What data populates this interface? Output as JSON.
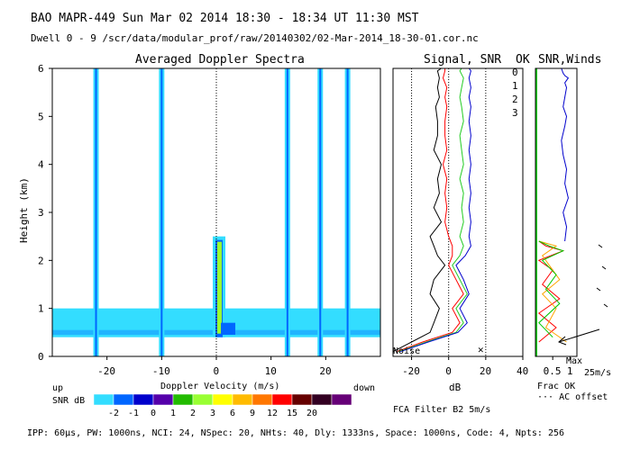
{
  "header": {
    "title_line": "BAO  MAPR-449  Sun Mar 02 2014 18:30 - 18:34 UT 11:30 MST",
    "dwell_line": "Dwell  0 -  9   /scr/data/modular_prof/raw/20140302/02-Mar-2014_18-30-01.cor.nc"
  },
  "panels": {
    "spectra_title": "Averaged Doppler Spectra",
    "signal_title": "Signal, SNR",
    "ok_title": "OK",
    "winds_title": "SNR,Winds"
  },
  "legend_ok": {
    "labels": [
      "0",
      "1",
      "2",
      "3"
    ],
    "colors": [
      "#ff0000",
      "#ffa500",
      "#00c800",
      "#0000c8"
    ]
  },
  "annotations": {
    "up": "up",
    "down": "down",
    "snr_db": "SNR dB",
    "noise": "Noise",
    "db_label": "dB",
    "frac_ok": "Frac OK",
    "ac_offset": "··· AC offset",
    "max": "Max",
    "max_speed": "25m/s",
    "filter": "FCA Filter B2  5m/s"
  },
  "colorbar": {
    "labels": [
      "-2",
      "-1",
      "0",
      "1",
      "2",
      "3",
      "6",
      "9",
      "12",
      "15",
      "20"
    ],
    "colors": [
      "#33ddff",
      "#0066ff",
      "#0000cc",
      "#5500aa",
      "#22bb00",
      "#99ff33",
      "#ffff00",
      "#ffbb00",
      "#ff7700",
      "#ff0000",
      "#660000",
      "#330022",
      "#660077"
    ]
  },
  "footer": {
    "params": "IPP:  60µs,  PW: 1000ns,  NCI:  24,  NSpec: 20, NHts: 40,  Dly: 1333ns,  Space: 1000ns,  Code: 4,  Npts: 256"
  },
  "chart_data": [
    {
      "type": "heatmap",
      "title": "Averaged Doppler Spectra",
      "xlabel": "Doppler Velocity (m/s)",
      "ylabel": "Height (km)",
      "xlim": [
        -30,
        30
      ],
      "ylim": [
        0,
        6
      ],
      "xticks": [
        -20,
        -10,
        0,
        10,
        20
      ],
      "yticks": [
        0,
        1,
        2,
        3,
        4,
        5,
        6
      ],
      "vertical_bands_m_s": [
        -22,
        -10,
        13,
        19,
        24
      ],
      "low_layer_km": [
        0.4,
        1.0
      ],
      "center_echo_top_km": 2.5
    },
    {
      "type": "line",
      "title": "Signal, SNR",
      "xlabel": "dB",
      "xlim": [
        -30,
        40
      ],
      "ylim": [
        0,
        6
      ],
      "xticks": [
        -20,
        0,
        20,
        40
      ],
      "series": [
        {
          "name": "signal",
          "color": "#000000",
          "x": [
            -30,
            -20,
            -10,
            -8,
            -5,
            -10,
            -8,
            -2,
            -6,
            -8,
            -10,
            -4,
            -8,
            -5,
            -6,
            -4,
            -8,
            -6,
            -6,
            -7,
            -5,
            -6,
            -5,
            -6,
            -4
          ],
          "y": [
            0.1,
            0.3,
            0.5,
            0.7,
            1.0,
            1.3,
            1.6,
            1.9,
            2.1,
            2.3,
            2.5,
            2.8,
            3.1,
            3.4,
            3.7,
            4.0,
            4.3,
            4.6,
            4.9,
            5.2,
            5.4,
            5.6,
            5.8,
            5.95,
            6.0
          ]
        },
        {
          "name": "snr-red",
          "color": "#ff0000",
          "x": [
            -28,
            -14,
            2,
            6,
            2,
            8,
            4,
            0,
            2,
            2,
            0,
            -2,
            -1,
            -2,
            -1,
            -3,
            -1,
            -2,
            -2,
            -1,
            -2,
            -1,
            -3,
            -2,
            -2
          ],
          "y": [
            0.1,
            0.3,
            0.5,
            0.7,
            1.0,
            1.3,
            1.6,
            1.9,
            2.1,
            2.3,
            2.5,
            2.8,
            3.1,
            3.4,
            3.7,
            4.0,
            4.3,
            4.6,
            4.9,
            5.2,
            5.4,
            5.6,
            5.8,
            5.95,
            6.0
          ]
        },
        {
          "name": "snr-green",
          "color": "#22cc22",
          "x": [
            -27,
            -12,
            4,
            8,
            4,
            10,
            6,
            2,
            6,
            8,
            6,
            8,
            7,
            8,
            6,
            8,
            7,
            6,
            8,
            7,
            6,
            7,
            8,
            6,
            7
          ],
          "y": [
            0.1,
            0.3,
            0.5,
            0.7,
            1.0,
            1.3,
            1.6,
            1.9,
            2.1,
            2.3,
            2.5,
            2.8,
            3.1,
            3.4,
            3.7,
            4.0,
            4.3,
            4.6,
            4.9,
            5.2,
            5.4,
            5.6,
            5.8,
            5.95,
            6.0
          ]
        },
        {
          "name": "snr-blue",
          "color": "#0000cc",
          "x": [
            -26,
            -11,
            5,
            10,
            6,
            11,
            8,
            4,
            9,
            12,
            11,
            12,
            11,
            12,
            11,
            12,
            11,
            12,
            11,
            12,
            11,
            12,
            11,
            12,
            11
          ],
          "y": [
            0.1,
            0.3,
            0.5,
            0.7,
            1.0,
            1.3,
            1.6,
            1.9,
            2.1,
            2.3,
            2.5,
            2.8,
            3.1,
            3.4,
            3.7,
            4.0,
            4.3,
            4.6,
            4.9,
            5.2,
            5.4,
            5.6,
            5.8,
            5.95,
            6.0
          ]
        }
      ]
    },
    {
      "type": "line",
      "title": "OK SNR,Winds",
      "xlabel": "Frac OK",
      "xlim": [
        0,
        1.2
      ],
      "ylim": [
        0,
        6
      ],
      "xticks": [
        0.5,
        1
      ],
      "series": [
        {
          "name": "wind-speed",
          "color": "#0000cc",
          "x": [
            0.85,
            0.9,
            0.8,
            0.95,
            0.85,
            0.9,
            0.8,
            0.75,
            0.85,
            0.9,
            0.8,
            0.85,
            0.9,
            0.85,
            0.95,
            0.85,
            0.8,
            0.75
          ],
          "y": [
            2.4,
            2.7,
            3.0,
            3.3,
            3.6,
            3.9,
            4.2,
            4.5,
            4.8,
            5.0,
            5.2,
            5.4,
            5.6,
            5.7,
            5.8,
            5.85,
            5.9,
            6.0
          ]
        },
        {
          "name": "frac-ok-0",
          "color": "#ff0000",
          "x": [
            0.1,
            0.6,
            0.1,
            0.7,
            0.2,
            0.5,
            0.1,
            0.8,
            0.3,
            0.1
          ],
          "y": [
            0.3,
            0.6,
            0.9,
            1.2,
            1.5,
            1.8,
            2.0,
            2.2,
            2.3,
            2.4
          ]
        },
        {
          "name": "frac-ok-1",
          "color": "#ffa500",
          "x": [
            0.9,
            0.3,
            0.6,
            0.2,
            0.7,
            0.4,
            0.2,
            0.6,
            0.1
          ],
          "y": [
            0.3,
            0.6,
            1.0,
            1.3,
            1.6,
            1.9,
            2.1,
            2.3,
            2.4
          ]
        },
        {
          "name": "frac-ok-2",
          "color": "#00c800",
          "x": [
            0.5,
            0.1,
            0.7,
            0.3,
            0.6,
            0.2,
            0.8,
            0.4,
            0.1
          ],
          "y": [
            0.4,
            0.7,
            1.1,
            1.4,
            1.7,
            2.0,
            2.2,
            2.3,
            2.4
          ]
        }
      ]
    }
  ]
}
